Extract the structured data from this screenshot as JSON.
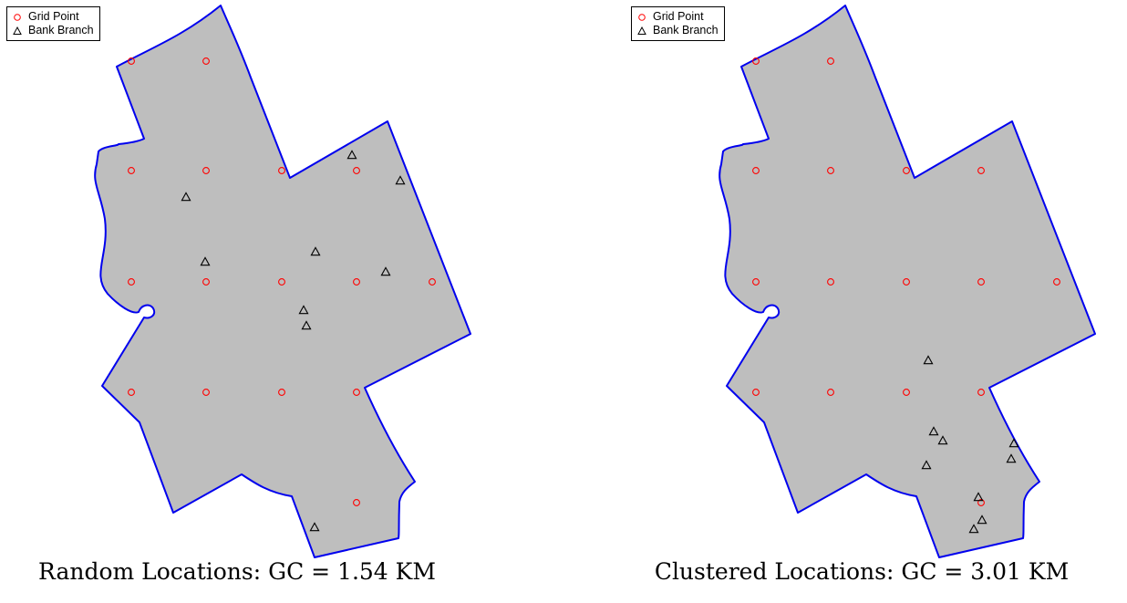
{
  "colors": {
    "region_fill": "#bebebe",
    "boundary": "#0000ee",
    "grid_point": "#ff0000",
    "bank_branch": "#000000"
  },
  "legend": {
    "grid_point_label": "Grid Point",
    "bank_branch_label": "Bank Branch"
  },
  "panels": [
    {
      "caption": "Random Locations: GC = 1.54 KM"
    },
    {
      "caption": "Clustered Locations: GC = 3.01 KM"
    }
  ]
}
